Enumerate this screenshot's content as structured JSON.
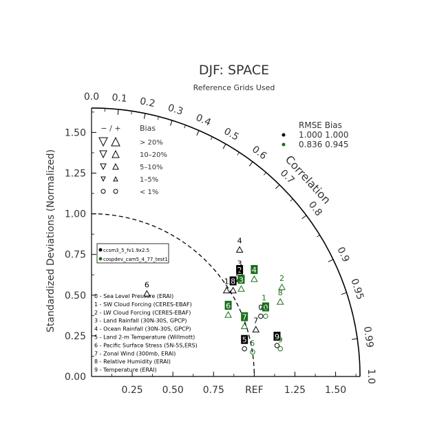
{
  "chart_data": {
    "type": "taylor",
    "title": "DJF: SPACE",
    "subtitle": "Reference Grids Used",
    "ylabel": "Standardized Deviations (Normalized)",
    "arc_label": "Correlation",
    "ref_label": "REF",
    "std_max": 1.65,
    "x_ticks": [
      "0.25",
      "0.50",
      "0.75",
      "REF",
      "1.25",
      "1.50"
    ],
    "x_tick_values": [
      0.25,
      0.5,
      0.75,
      1.0,
      1.25,
      1.5
    ],
    "y_ticks": [
      "0.00",
      "0.25",
      "0.50",
      "0.75",
      "1.00",
      "1.25",
      "1.50"
    ],
    "y_tick_values": [
      0,
      0.25,
      0.5,
      0.75,
      1.0,
      1.25,
      1.5
    ],
    "corr_labels": [
      "0.0",
      "0.1",
      "0.2",
      "0.3",
      "0.4",
      "0.5",
      "0.6",
      "0.7",
      "0.8",
      "0.9",
      "0.95",
      "0.99",
      "1.0"
    ],
    "corr_values": [
      0.0,
      0.1,
      0.2,
      0.3,
      0.4,
      0.5,
      0.6,
      0.7,
      0.8,
      0.9,
      0.95,
      0.99,
      1.0
    ],
    "bias_legend": {
      "header": "Bias",
      "signs": "− / +",
      "rows": [
        "> 20%",
        "10–20%",
        "5–10%",
        "1–5%",
        "< 1%"
      ]
    },
    "rmse_table": {
      "header": "RMSE  Bias",
      "rows": [
        {
          "rmse": "1.000",
          "bias": "1.000",
          "color": "#000000"
        },
        {
          "rmse": "0.836",
          "bias": "0.945",
          "color": "#1a6e1a"
        }
      ]
    },
    "case_legend": [
      {
        "name": "ccsm3_5_fv1.9x2.5",
        "color": "#000000"
      },
      {
        "name": "cospdev_cam5_4_77_test1",
        "color": "#1a6e1a"
      }
    ],
    "variables": [
      "0 - Sea Level Pressure (ERAI)",
      "1 - SW Cloud Forcing (CERES-EBAF)",
      "2 - LW Cloud Forcing (CERES-EBAF)",
      "3 - Land Rainfall (30N-30S, GPCP)",
      "4 - Ocean Rainfall (30N-30S, GPCP)",
      "5 - Land 2-m Temperature (Willmott)",
      "6 - Pacific Surface Stress (5N-5S,ERS)",
      "7 - Zonal Wind (300mb, ERAI)",
      "8 - Relative Humidity (ERAI)",
      "9 - Temperature (ERAI)"
    ],
    "series": [
      {
        "name": "ccsm3_5_fv1.9x2.5",
        "color": "#000000",
        "points": [
          {
            "id": "0",
            "x": 1.04,
            "y": 0.4,
            "marker": "circle",
            "dir": "none",
            "boxed": false
          },
          {
            "id": "1",
            "x": 0.83,
            "y": 0.56,
            "marker": "triangle",
            "dir": "up",
            "boxed": false
          },
          {
            "id": "2",
            "x": 0.91,
            "y": 0.63,
            "marker": "triangle",
            "dir": "up",
            "boxed": true
          },
          {
            "id": "3",
            "x": 0.91,
            "y": 0.67,
            "marker": "triangle",
            "dir": "up",
            "boxed": false
          },
          {
            "id": "4",
            "x": 0.91,
            "y": 0.81,
            "marker": "triangle",
            "dir": "up",
            "boxed": false
          },
          {
            "id": "5",
            "x": 0.94,
            "y": 0.2,
            "marker": "circle",
            "dir": "none",
            "boxed": true
          },
          {
            "id": "6",
            "x": 0.34,
            "y": 0.54,
            "marker": "triangle",
            "dir": "up",
            "boxed": false
          },
          {
            "id": "7",
            "x": 1.01,
            "y": 0.32,
            "marker": "triangle",
            "dir": "up",
            "boxed": false
          },
          {
            "id": "8",
            "x": 0.87,
            "y": 0.56,
            "marker": "triangle",
            "dir": "up",
            "boxed": true
          },
          {
            "id": "9",
            "x": 1.14,
            "y": 0.22,
            "marker": "circle",
            "dir": "none",
            "boxed": true
          }
        ]
      },
      {
        "name": "cospdev_cam5_4_77_test1",
        "color": "#1a6e1a",
        "points": [
          {
            "id": "0",
            "x": 1.07,
            "y": 0.4,
            "marker": "circle",
            "dir": "none",
            "boxed": true
          },
          {
            "id": "1",
            "x": 1.06,
            "y": 0.46,
            "marker": "triangle",
            "dir": "up",
            "boxed": false
          },
          {
            "id": "2",
            "x": 1.17,
            "y": 0.58,
            "marker": "triangle",
            "dir": "up",
            "boxed": false
          },
          {
            "id": "3",
            "x": 0.92,
            "y": 0.57,
            "marker": "triangle",
            "dir": "up",
            "boxed": true
          },
          {
            "id": "4",
            "x": 1.0,
            "y": 0.63,
            "marker": "triangle",
            "dir": "up",
            "boxed": true
          },
          {
            "id": "5",
            "x": 0.99,
            "y": 0.18,
            "marker": "circle",
            "dir": "none",
            "boxed": false
          },
          {
            "id": "6",
            "x": 0.84,
            "y": 0.41,
            "marker": "triangle",
            "dir": "up",
            "boxed": true
          },
          {
            "id": "7",
            "x": 0.94,
            "y": 0.34,
            "marker": "triangle",
            "dir": "up",
            "boxed": true
          },
          {
            "id": "8",
            "x": 1.16,
            "y": 0.49,
            "marker": "triangle",
            "dir": "up",
            "boxed": false
          },
          {
            "id": "9",
            "x": 1.16,
            "y": 0.2,
            "marker": "circle",
            "dir": "none",
            "boxed": false
          }
        ]
      }
    ]
  }
}
